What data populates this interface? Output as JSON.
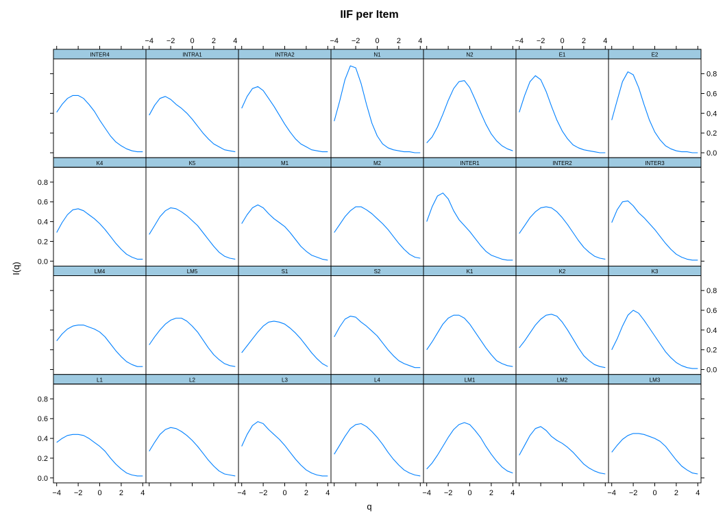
{
  "chart_data": {
    "type": "line",
    "title": "IIF per Item",
    "xlabel": "q",
    "ylabel": "I(q)",
    "xlim": [
      -4.3,
      4.3
    ],
    "ylim": [
      -0.05,
      0.95
    ],
    "xticks": [
      -4,
      -2,
      0,
      2,
      4
    ],
    "yticks": [
      0.0,
      0.2,
      0.4,
      0.6,
      0.8
    ],
    "xtick_labels": [
      "−4",
      "−2",
      "0",
      "2",
      "4"
    ],
    "ytick_labels": [
      "0.0",
      "0.2",
      "0.4",
      "0.6",
      "0.8"
    ],
    "layout": {
      "columns": 7,
      "rows": 4
    },
    "line_color": "#0080ff",
    "strip_color": "#9ecae1",
    "grid": false,
    "x": [
      -4.0,
      -3.5,
      -3.0,
      -2.5,
      -2.0,
      -1.5,
      -1.0,
      -0.5,
      0.0,
      0.5,
      1.0,
      1.5,
      2.0,
      2.5,
      3.0,
      3.5,
      4.0
    ],
    "panels": [
      {
        "name": "INTER4",
        "values": [
          0.41,
          0.49,
          0.55,
          0.58,
          0.58,
          0.55,
          0.49,
          0.42,
          0.33,
          0.25,
          0.17,
          0.11,
          0.07,
          0.04,
          0.02,
          0.01,
          0.01
        ]
      },
      {
        "name": "INTRA1",
        "values": [
          0.38,
          0.48,
          0.55,
          0.57,
          0.54,
          0.49,
          0.45,
          0.4,
          0.34,
          0.27,
          0.2,
          0.14,
          0.09,
          0.06,
          0.03,
          0.02,
          0.01
        ]
      },
      {
        "name": "INTRA2",
        "values": [
          0.45,
          0.57,
          0.65,
          0.67,
          0.63,
          0.55,
          0.47,
          0.38,
          0.29,
          0.21,
          0.14,
          0.09,
          0.06,
          0.03,
          0.02,
          0.01,
          0.01
        ]
      },
      {
        "name": "N1",
        "values": [
          0.32,
          0.52,
          0.74,
          0.88,
          0.86,
          0.7,
          0.49,
          0.3,
          0.17,
          0.09,
          0.05,
          0.03,
          0.02,
          0.01,
          0.01,
          0.0,
          0.0
        ]
      },
      {
        "name": "N2",
        "values": [
          0.1,
          0.16,
          0.26,
          0.39,
          0.53,
          0.65,
          0.72,
          0.73,
          0.66,
          0.54,
          0.41,
          0.29,
          0.19,
          0.12,
          0.07,
          0.04,
          0.02
        ]
      },
      {
        "name": "E1",
        "values": [
          0.41,
          0.58,
          0.72,
          0.78,
          0.74,
          0.62,
          0.47,
          0.33,
          0.22,
          0.14,
          0.08,
          0.05,
          0.03,
          0.02,
          0.01,
          0.0,
          0.0
        ]
      },
      {
        "name": "E2",
        "values": [
          0.33,
          0.53,
          0.72,
          0.82,
          0.79,
          0.66,
          0.49,
          0.33,
          0.21,
          0.13,
          0.07,
          0.04,
          0.02,
          0.01,
          0.01,
          0.0,
          0.0
        ]
      },
      {
        "name": "K4",
        "values": [
          0.29,
          0.39,
          0.47,
          0.52,
          0.53,
          0.51,
          0.47,
          0.43,
          0.38,
          0.32,
          0.25,
          0.18,
          0.12,
          0.07,
          0.04,
          0.02,
          0.02
        ]
      },
      {
        "name": "K5",
        "values": [
          0.27,
          0.36,
          0.45,
          0.51,
          0.54,
          0.53,
          0.5,
          0.46,
          0.41,
          0.36,
          0.29,
          0.22,
          0.15,
          0.09,
          0.05,
          0.03,
          0.02
        ]
      },
      {
        "name": "M1",
        "values": [
          0.38,
          0.47,
          0.54,
          0.57,
          0.54,
          0.48,
          0.43,
          0.39,
          0.35,
          0.29,
          0.22,
          0.15,
          0.1,
          0.06,
          0.04,
          0.02,
          0.01
        ]
      },
      {
        "name": "M2",
        "values": [
          0.29,
          0.37,
          0.45,
          0.51,
          0.55,
          0.55,
          0.52,
          0.48,
          0.43,
          0.38,
          0.32,
          0.25,
          0.18,
          0.12,
          0.07,
          0.04,
          0.03
        ]
      },
      {
        "name": "INTER1",
        "values": [
          0.4,
          0.55,
          0.66,
          0.69,
          0.63,
          0.51,
          0.42,
          0.36,
          0.3,
          0.23,
          0.16,
          0.1,
          0.06,
          0.04,
          0.02,
          0.01,
          0.01
        ]
      },
      {
        "name": "INTER2",
        "values": [
          0.28,
          0.36,
          0.44,
          0.5,
          0.54,
          0.55,
          0.54,
          0.5,
          0.44,
          0.37,
          0.29,
          0.21,
          0.14,
          0.09,
          0.05,
          0.03,
          0.02
        ]
      },
      {
        "name": "INTER3",
        "values": [
          0.39,
          0.52,
          0.6,
          0.61,
          0.56,
          0.49,
          0.44,
          0.38,
          0.32,
          0.25,
          0.18,
          0.12,
          0.07,
          0.04,
          0.02,
          0.01,
          0.01
        ]
      },
      {
        "name": "LM4",
        "values": [
          0.29,
          0.36,
          0.41,
          0.44,
          0.45,
          0.45,
          0.43,
          0.41,
          0.38,
          0.33,
          0.26,
          0.19,
          0.13,
          0.08,
          0.05,
          0.03,
          0.03
        ]
      },
      {
        "name": "LM5",
        "values": [
          0.25,
          0.33,
          0.4,
          0.46,
          0.5,
          0.52,
          0.52,
          0.49,
          0.44,
          0.38,
          0.3,
          0.22,
          0.15,
          0.1,
          0.06,
          0.04,
          0.03
        ]
      },
      {
        "name": "S1",
        "values": [
          0.17,
          0.24,
          0.31,
          0.38,
          0.44,
          0.48,
          0.49,
          0.48,
          0.46,
          0.42,
          0.37,
          0.31,
          0.24,
          0.17,
          0.11,
          0.06,
          0.03
        ]
      },
      {
        "name": "S2",
        "values": [
          0.33,
          0.43,
          0.51,
          0.54,
          0.53,
          0.48,
          0.44,
          0.39,
          0.34,
          0.27,
          0.2,
          0.14,
          0.09,
          0.06,
          0.04,
          0.02,
          0.02
        ]
      },
      {
        "name": "K1",
        "values": [
          0.2,
          0.28,
          0.37,
          0.46,
          0.52,
          0.55,
          0.55,
          0.52,
          0.46,
          0.38,
          0.3,
          0.22,
          0.15,
          0.09,
          0.06,
          0.04,
          0.03
        ]
      },
      {
        "name": "K2",
        "values": [
          0.22,
          0.29,
          0.37,
          0.45,
          0.51,
          0.55,
          0.56,
          0.54,
          0.48,
          0.4,
          0.31,
          0.22,
          0.14,
          0.09,
          0.05,
          0.03,
          0.02
        ]
      },
      {
        "name": "K3",
        "values": [
          0.2,
          0.31,
          0.44,
          0.55,
          0.6,
          0.57,
          0.5,
          0.42,
          0.34,
          0.26,
          0.18,
          0.12,
          0.07,
          0.04,
          0.02,
          0.01,
          0.01
        ]
      },
      {
        "name": "L1",
        "values": [
          0.36,
          0.4,
          0.43,
          0.44,
          0.44,
          0.43,
          0.4,
          0.36,
          0.32,
          0.27,
          0.2,
          0.14,
          0.09,
          0.05,
          0.03,
          0.02,
          0.02
        ]
      },
      {
        "name": "L2",
        "values": [
          0.27,
          0.36,
          0.44,
          0.49,
          0.51,
          0.5,
          0.47,
          0.43,
          0.38,
          0.32,
          0.25,
          0.18,
          0.12,
          0.07,
          0.04,
          0.03,
          0.02
        ]
      },
      {
        "name": "L3",
        "values": [
          0.32,
          0.44,
          0.53,
          0.57,
          0.55,
          0.49,
          0.44,
          0.39,
          0.33,
          0.26,
          0.19,
          0.13,
          0.08,
          0.05,
          0.03,
          0.02,
          0.02
        ]
      },
      {
        "name": "L4",
        "values": [
          0.24,
          0.33,
          0.42,
          0.5,
          0.54,
          0.55,
          0.52,
          0.47,
          0.41,
          0.34,
          0.26,
          0.19,
          0.13,
          0.08,
          0.05,
          0.03,
          0.02
        ]
      },
      {
        "name": "LM1",
        "values": [
          0.09,
          0.15,
          0.23,
          0.32,
          0.41,
          0.49,
          0.54,
          0.56,
          0.54,
          0.48,
          0.41,
          0.32,
          0.24,
          0.17,
          0.11,
          0.07,
          0.05
        ]
      },
      {
        "name": "LM2",
        "values": [
          0.23,
          0.33,
          0.43,
          0.5,
          0.52,
          0.48,
          0.42,
          0.38,
          0.35,
          0.31,
          0.26,
          0.2,
          0.14,
          0.1,
          0.07,
          0.05,
          0.04
        ]
      },
      {
        "name": "LM3",
        "values": [
          0.26,
          0.33,
          0.39,
          0.43,
          0.45,
          0.45,
          0.44,
          0.42,
          0.4,
          0.37,
          0.32,
          0.25,
          0.18,
          0.12,
          0.08,
          0.05,
          0.04
        ]
      }
    ]
  }
}
